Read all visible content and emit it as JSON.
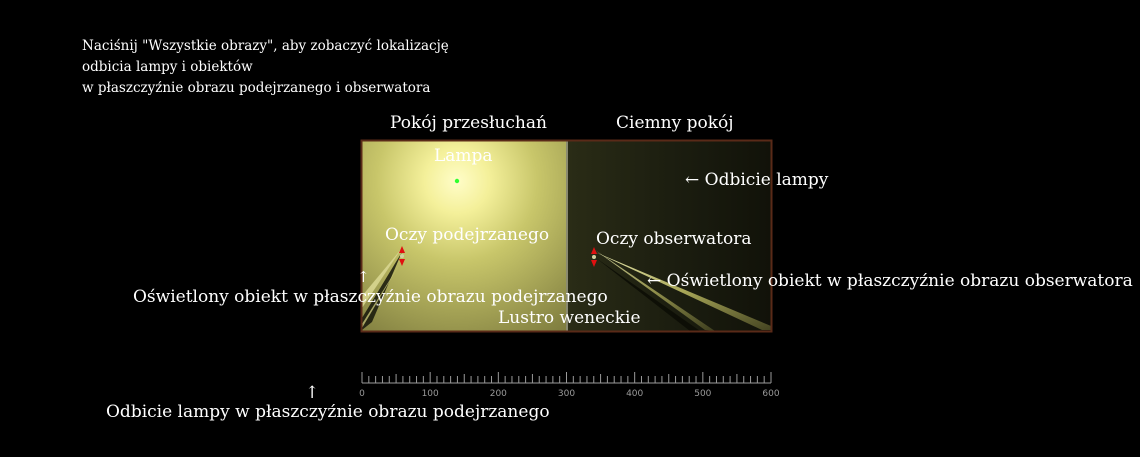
{
  "instructions": {
    "line1": "Naciśnij \"Wszystkie obrazy\", aby zobaczyć lokalizację",
    "line2": "odbicia lampy i obiektów",
    "line3": "w płaszczyźnie obrazu podejrzanego i obserwatora"
  },
  "rooms": {
    "interrogation": "Pokój przesłuchań",
    "dark": "Ciemny pokój"
  },
  "labels": {
    "lamp": "Lampa",
    "lamp_reflection": "Odbicie lampy",
    "suspect_eyes": "Oczy podejrzanego",
    "observer_eyes": "Oczy obserwatora",
    "lit_object_observer": "Oświetlony obiekt w płaszczyźnie obrazu obserwatora",
    "lit_object_suspect": "Oświetlony obiekt w płaszczyźnie obrazu podejrzanego",
    "mirror": "Lustro weneckie",
    "lamp_reflection_suspect": "Odbicie lampy w płaszczyźnie obrazu podejrzanego"
  },
  "arrows": {
    "left": "←",
    "up": "↑"
  },
  "ruler": {
    "min": 0,
    "max": 600,
    "major_step": 100,
    "minor_step": 10,
    "labels": [
      "0",
      "100",
      "200",
      "300",
      "400",
      "500",
      "600"
    ]
  },
  "colors": {
    "background": "#000000",
    "lamp_glow": "#fffdc0",
    "interrogation_room": "#9a9a48",
    "dark_room": "#1a1c10",
    "border": "#5a2a18",
    "mirror": "#8a8a70",
    "eye_marker": "#e01010",
    "lamp_dot": "#30ff30"
  }
}
